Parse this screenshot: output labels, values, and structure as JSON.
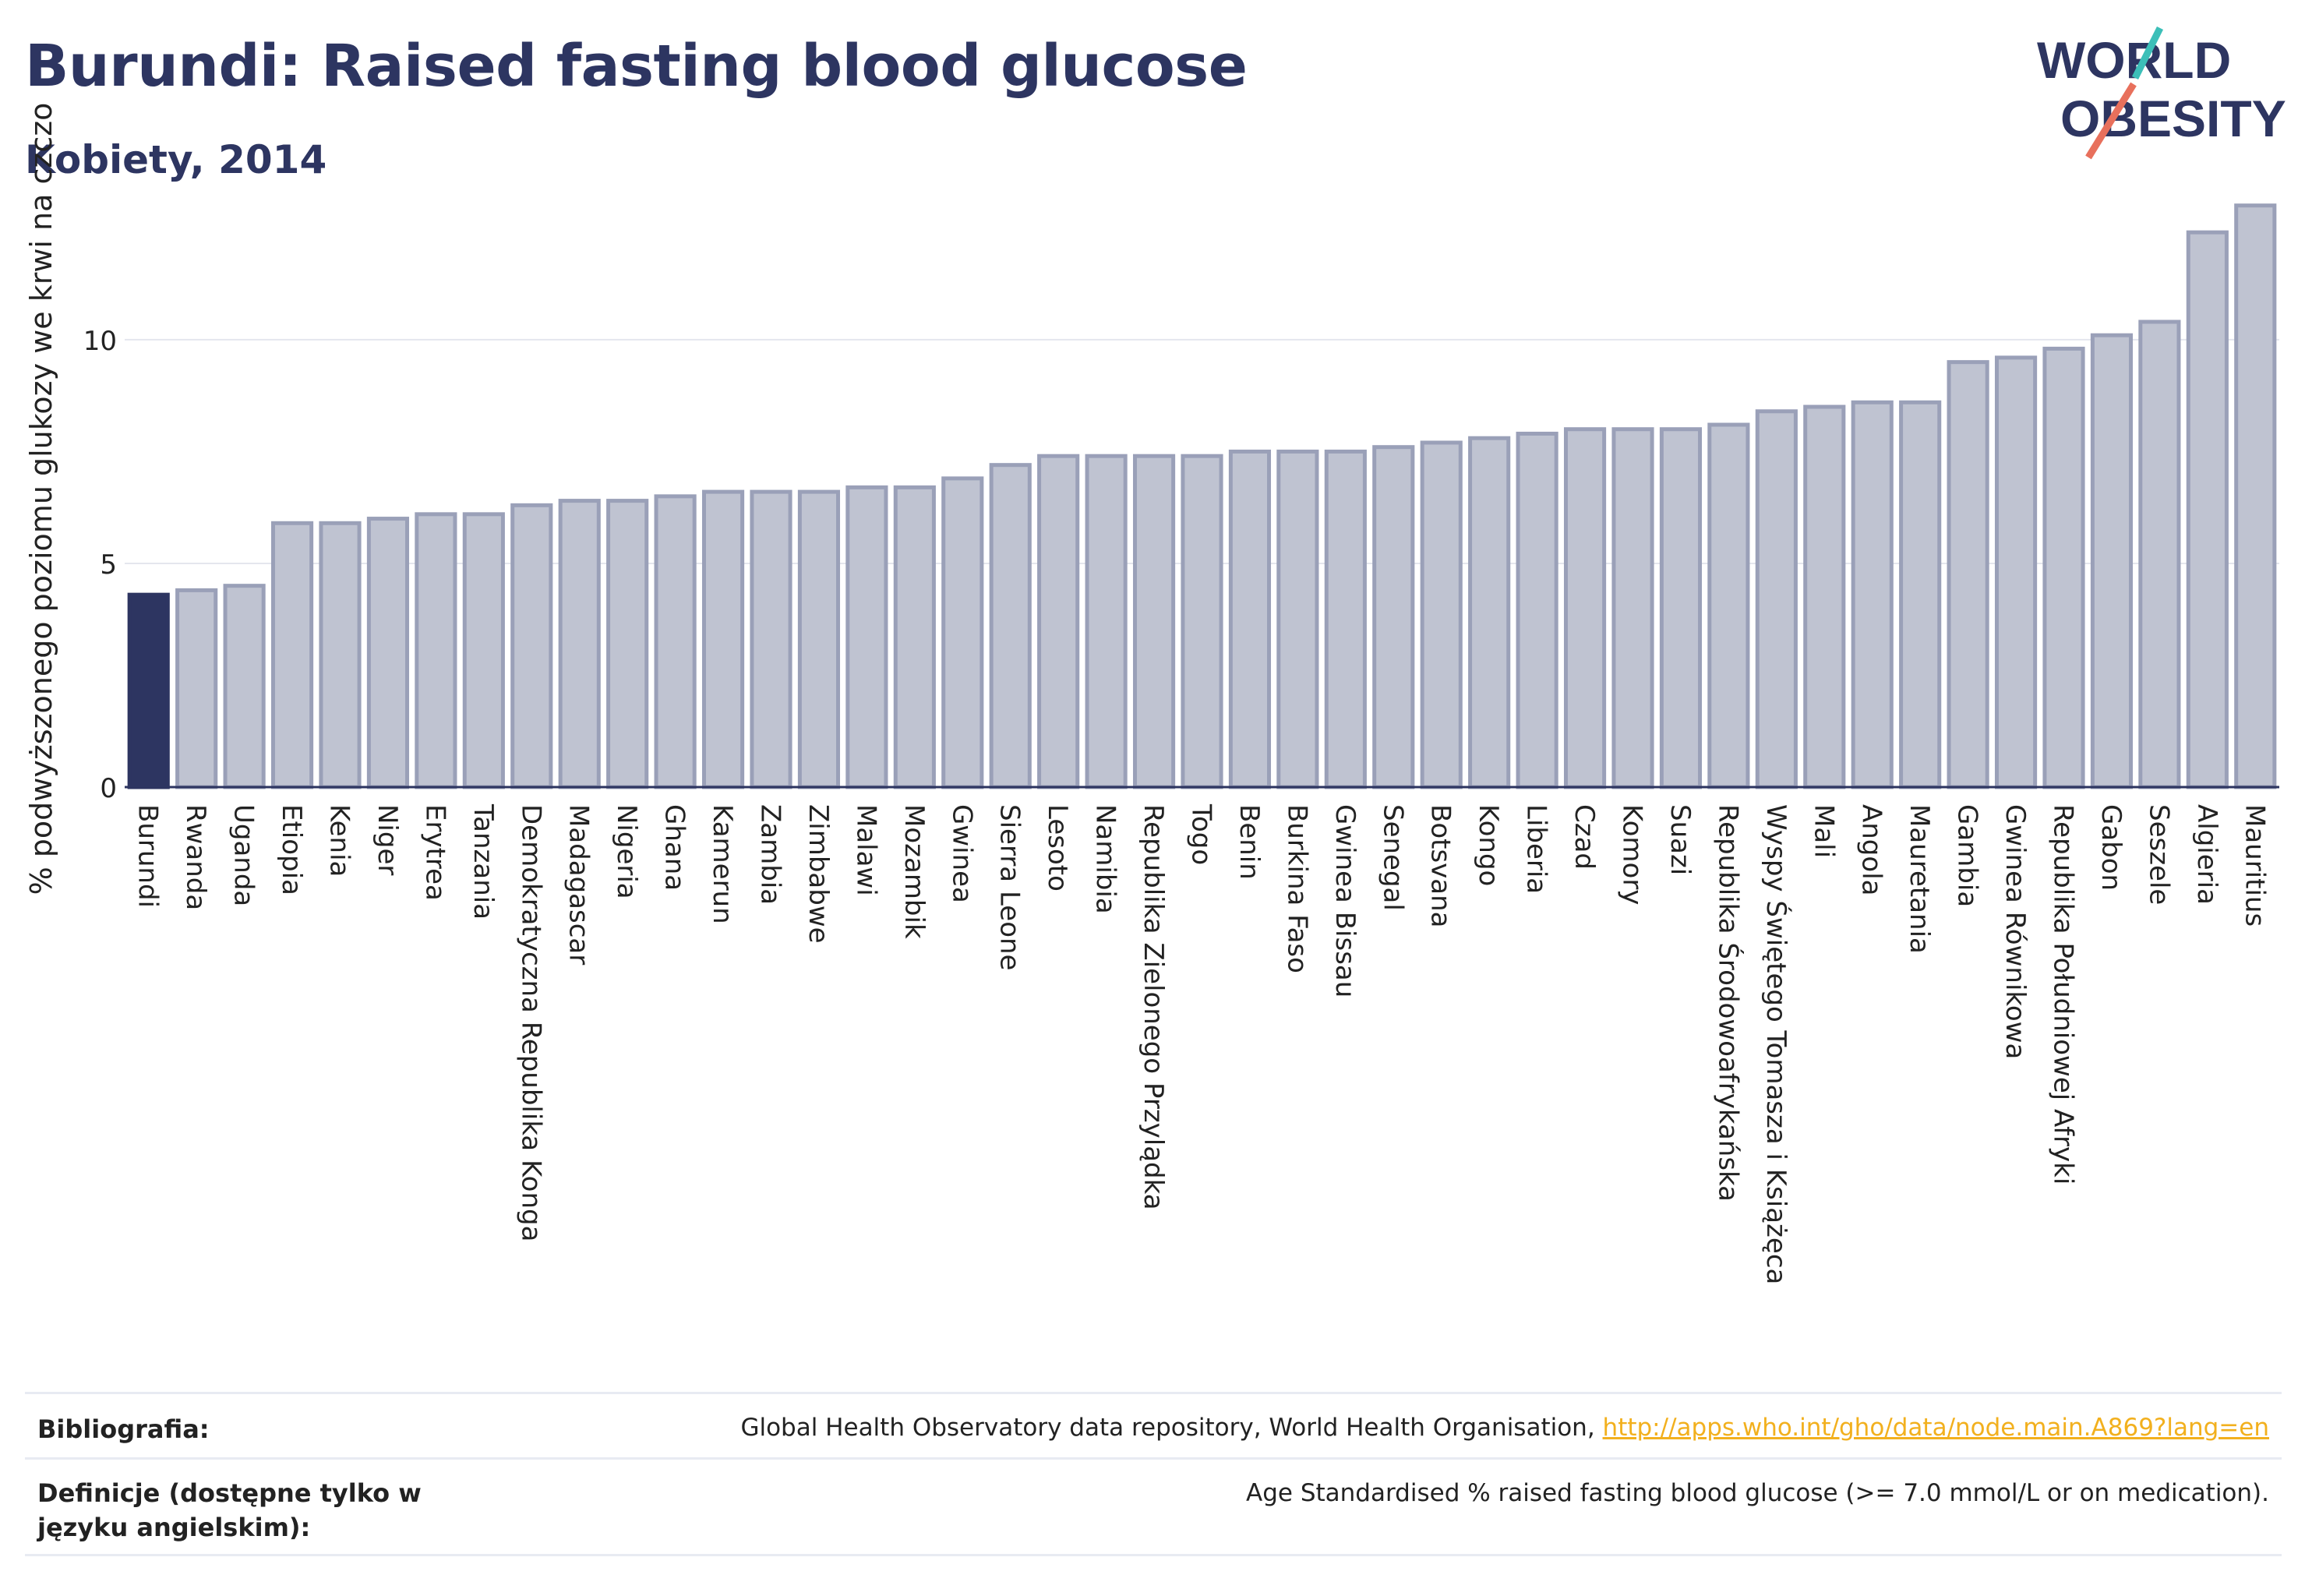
{
  "header": {
    "title": "Burundi: Raised fasting blood glucose",
    "subtitle": "Kobiety, 2014"
  },
  "logo": {
    "line1": "WORLD",
    "line2": "OBESITY",
    "accent_teal": "#3cbfb8",
    "accent_coral": "#e8705c"
  },
  "colors": {
    "highlight": "#2d3561",
    "bar_fill": "#bfc3d1",
    "bar_stroke": "#9aa0b8",
    "text": "#222222"
  },
  "chart_data": {
    "type": "bar",
    "ylabel": "% podwyższonego poziomu glukozy we krwi na czczo",
    "ylim": [
      0,
      13.5
    ],
    "yticks": [
      0,
      5,
      10
    ],
    "grid": true,
    "highlight": "Burundi",
    "categories": [
      "Burundi",
      "Rwanda",
      "Uganda",
      "Etiopia",
      "Kenia",
      "Niger",
      "Erytrea",
      "Tanzania",
      "Demokratyczna Republika Konga",
      "Madagascar",
      "Nigeria",
      "Ghana",
      "Kamerun",
      "Zambia",
      "Zimbabwe",
      "Malawi",
      "Mozambik",
      "Gwinea",
      "Sierra Leone",
      "Lesoto",
      "Namibia",
      "Republika Zielonego Przylądka",
      "Togo",
      "Benin",
      "Burkina Faso",
      "Gwinea Bissau",
      "Senegal",
      "Botsvana",
      "Kongo",
      "Liberia",
      "Czad",
      "Komory",
      "Suazi",
      "Republika Środowoafrykańska",
      "Wyspy Świętego Tomasza i Książęca",
      "Mali",
      "Angola",
      "Mauretania",
      "Gambia",
      "Gwinea Równikowa",
      "Republika Południowej Afryki",
      "Gabon",
      "Seszele",
      "Algieria",
      "Mauritius"
    ],
    "values": [
      4.3,
      4.4,
      4.5,
      5.9,
      5.9,
      6.0,
      6.1,
      6.1,
      6.3,
      6.4,
      6.4,
      6.5,
      6.6,
      6.6,
      6.6,
      6.7,
      6.7,
      6.9,
      7.2,
      7.4,
      7.4,
      7.4,
      7.4,
      7.5,
      7.5,
      7.5,
      7.6,
      7.7,
      7.8,
      7.9,
      8.0,
      8.0,
      8.0,
      8.1,
      8.4,
      8.5,
      8.6,
      8.6,
      9.5,
      9.6,
      9.8,
      10.1,
      10.4,
      12.4,
      13.0
    ]
  },
  "references": {
    "bibliography_label": "Bibliografia:",
    "bibliography_text": "Global Health Observatory data repository, World Health Organisation, ",
    "bibliography_link": "http://apps.who.int/gho/data/node.main.A869?lang=en",
    "definitions_label": "Definicje (dostępne tylko w języku angielskim):",
    "definitions_text": "Age Standardised % raised fasting blood glucose (>= 7.0 mmol/L or on medication)."
  }
}
